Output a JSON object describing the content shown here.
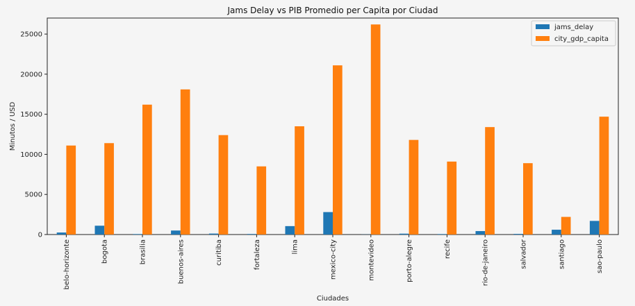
{
  "chart_data": {
    "type": "bar",
    "title": "Jams Delay vs PIB Promedio per Capita por Ciudad",
    "xlabel": "Ciudades",
    "ylabel": "Minutos / USD",
    "ylim": [
      0,
      27000
    ],
    "yticks": [
      0,
      5000,
      10000,
      15000,
      20000,
      25000
    ],
    "legend_position": "top-right",
    "grid": false,
    "categories": [
      "belo-horizonte",
      "bogota",
      "brasilia",
      "buenos-aires",
      "curitiba",
      "fortaleza",
      "lima",
      "mexico-city",
      "montevideo",
      "porto-alegre",
      "recife",
      "rio-de-janeiro",
      "salvador",
      "santiago",
      "sao-paulo"
    ],
    "series": [
      {
        "name": "jams_delay",
        "color": "#1f77b4",
        "values": [
          250,
          1100,
          60,
          500,
          120,
          70,
          1050,
          2800,
          15,
          110,
          60,
          430,
          80,
          600,
          1700
        ]
      },
      {
        "name": "city_gdp_capita",
        "color": "#ff7f0e",
        "values": [
          11100,
          11400,
          16200,
          18100,
          12400,
          8500,
          13500,
          21100,
          26200,
          11800,
          9100,
          13400,
          8900,
          2200,
          14700
        ]
      }
    ]
  }
}
